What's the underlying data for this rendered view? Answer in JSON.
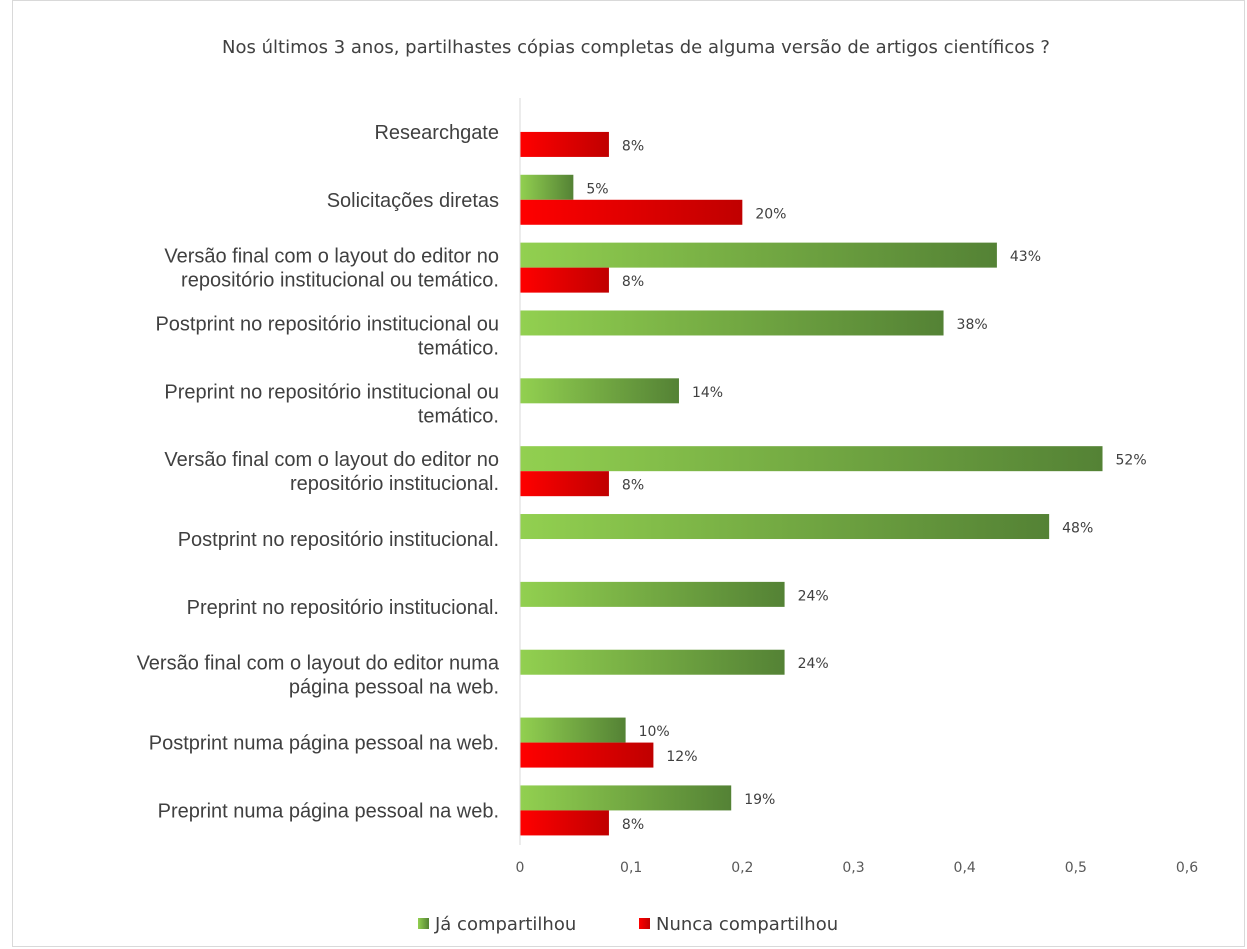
{
  "chart_data": {
    "type": "bar",
    "orientation": "horizontal",
    "title": "Nos últimos 3 anos, partilhastes cópias completas de alguma versão de artigos científicos ?",
    "xlabel": "",
    "ylabel": "",
    "xlim": [
      0,
      0.6
    ],
    "xticks": [
      0,
      0.1,
      0.2,
      0.3,
      0.4,
      0.5,
      0.6
    ],
    "xtick_labels": [
      "0",
      "0,1",
      "0,2",
      "0,3",
      "0,4",
      "0,5",
      "0,6"
    ],
    "grid": false,
    "legend_position": "bottom",
    "categories": [
      [
        "Researchgate"
      ],
      [
        "Solicitações diretas"
      ],
      [
        "Versão final com o layout do editor no",
        "repositório institucional ou temático."
      ],
      [
        "Postprint no repositório institucional ou",
        "temático."
      ],
      [
        "Preprint no repositório institucional ou",
        "temático."
      ],
      [
        "Versão final com o layout do editor no",
        "repositório institucional."
      ],
      [
        "Postprint no repositório institucional."
      ],
      [
        "Preprint no repositório institucional."
      ],
      [
        "Versão final com o layout do editor numa",
        "página pessoal na web."
      ],
      [
        "Postprint numa página pessoal na web."
      ],
      [
        "Preprint numa página pessoal na web."
      ]
    ],
    "series": [
      {
        "name": "Já compartilhou",
        "color": "#5e9e2d",
        "values": [
          null,
          0.048,
          0.429,
          0.381,
          0.143,
          0.524,
          0.476,
          0.238,
          0.238,
          0.095,
          0.19
        ],
        "labels": [
          null,
          "5%",
          "43%",
          "38%",
          "14%",
          "52%",
          "48%",
          "24%",
          "24%",
          "10%",
          "19%"
        ]
      },
      {
        "name": "Nunca  compartilhou",
        "color": "#e00000",
        "values": [
          0.08,
          0.2,
          0.08,
          null,
          null,
          0.08,
          null,
          null,
          null,
          0.12,
          0.08
        ],
        "labels": [
          "8%",
          "20%",
          "8%",
          null,
          null,
          "8%",
          null,
          null,
          null,
          "12%",
          "8%"
        ]
      }
    ]
  }
}
